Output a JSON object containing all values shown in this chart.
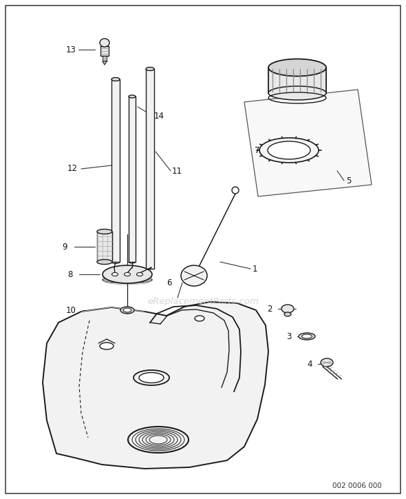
{
  "background_color": "#ffffff",
  "watermark_text": "eReplacementParts.com",
  "footer_text": "002 0006 000",
  "line_color": "#1a1a1a",
  "gray_fill": "#e8e8e8",
  "light_fill": "#f2f2f2",
  "mid_gray": "#999999",
  "dark_gray": "#555555"
}
